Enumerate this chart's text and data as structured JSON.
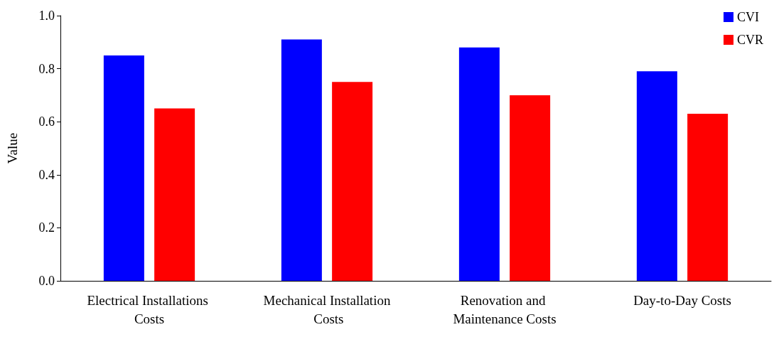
{
  "chart_data": {
    "type": "bar",
    "ylabel": "Value",
    "categories": [
      "Electrical Installations Costs",
      "Mechanical Installation Costs",
      "Renovation and Maintenance Costs",
      "Day-to-Day Costs"
    ],
    "series": [
      {
        "name": "CVI",
        "color": "#0000ff",
        "values": [
          0.85,
          0.91,
          0.88,
          0.79
        ]
      },
      {
        "name": "CVR",
        "color": "#ff0000",
        "values": [
          0.65,
          0.75,
          0.7,
          0.63
        ]
      }
    ],
    "ylim": [
      0,
      1
    ],
    "yticks": [
      {
        "value": 0,
        "label": "0.0"
      },
      0.2,
      0.4,
      0.6,
      0.8,
      {
        "value": 1,
        "label": "1.0"
      }
    ],
    "grid": false,
    "legend": "top right"
  }
}
